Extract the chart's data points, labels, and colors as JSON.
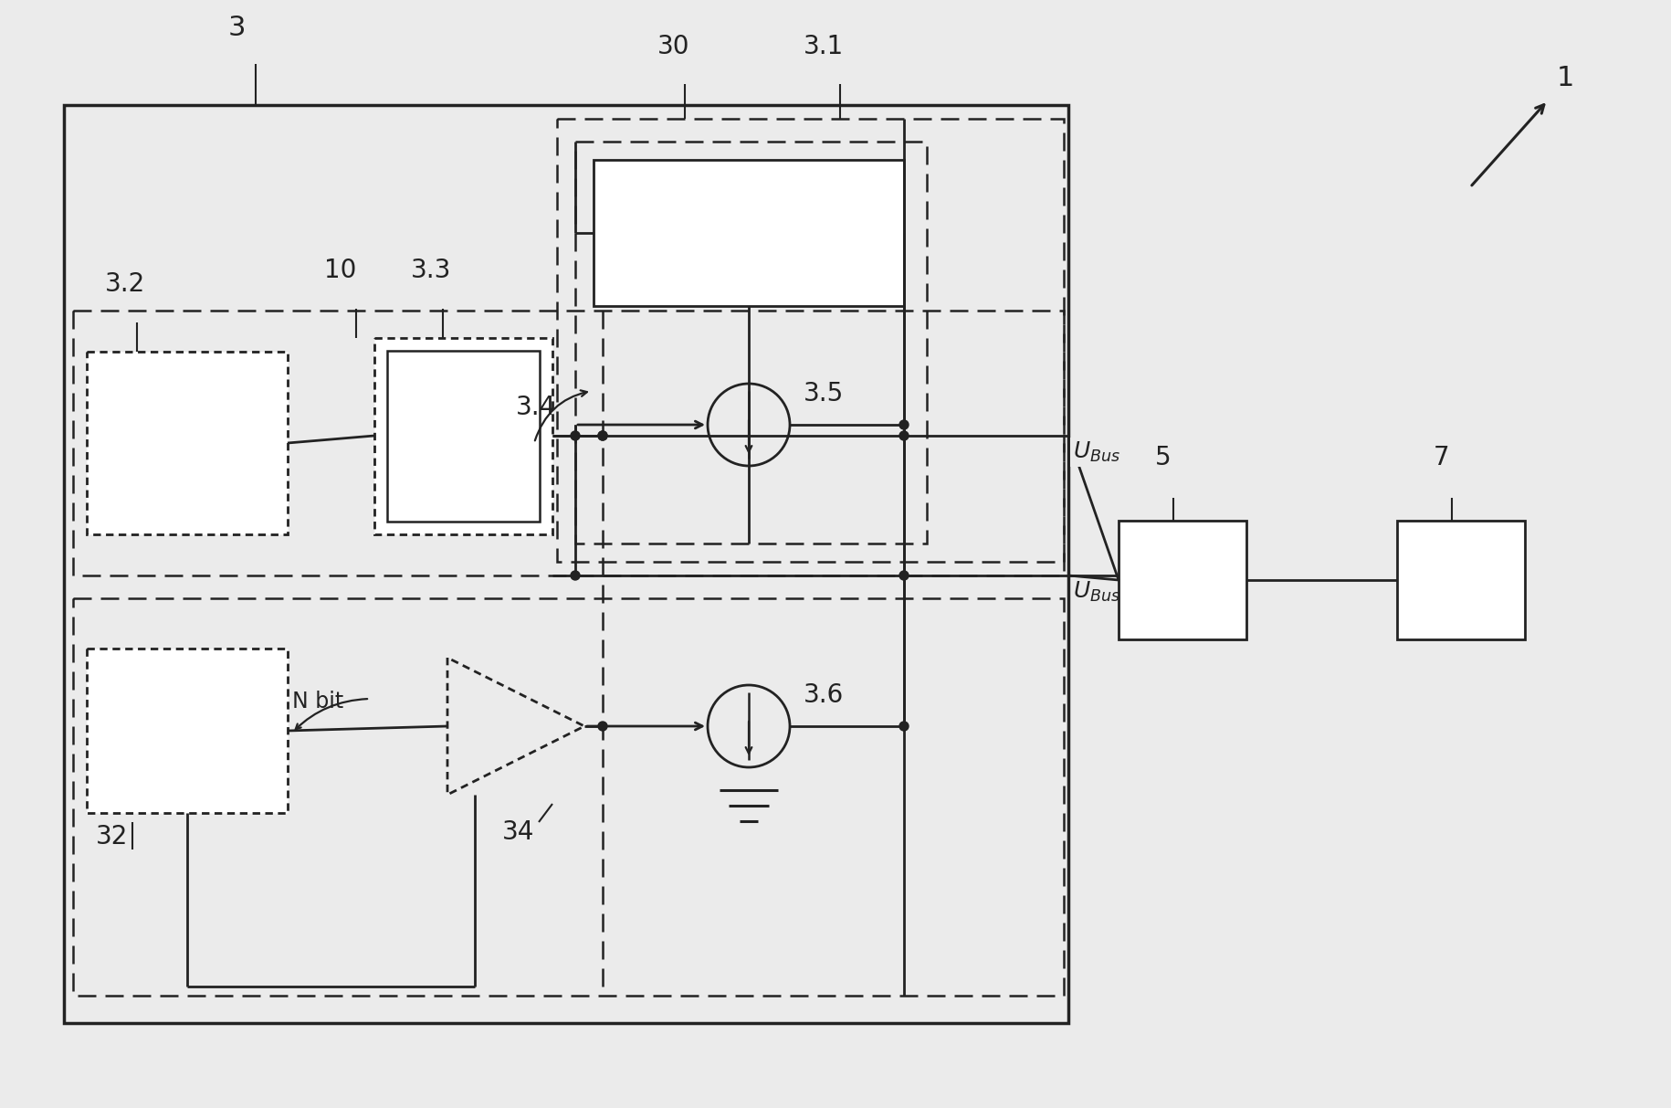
{
  "bg_color": "#ebebeb",
  "line_color": "#222222",
  "fig_width": 18.31,
  "fig_height": 12.13,
  "labels": {
    "ref1": "1",
    "ref3": "3",
    "ref30": "30",
    "ref31": "3.1",
    "ref32": "3.2",
    "ref33": "3.3",
    "ref34": "3.4",
    "ref35": "3.5",
    "ref36": "3.6",
    "ref10": "10",
    "ref_32": "32",
    "ref_34": "34",
    "ref5": "5",
    "ref7": "7",
    "Nbit": "N bit"
  }
}
